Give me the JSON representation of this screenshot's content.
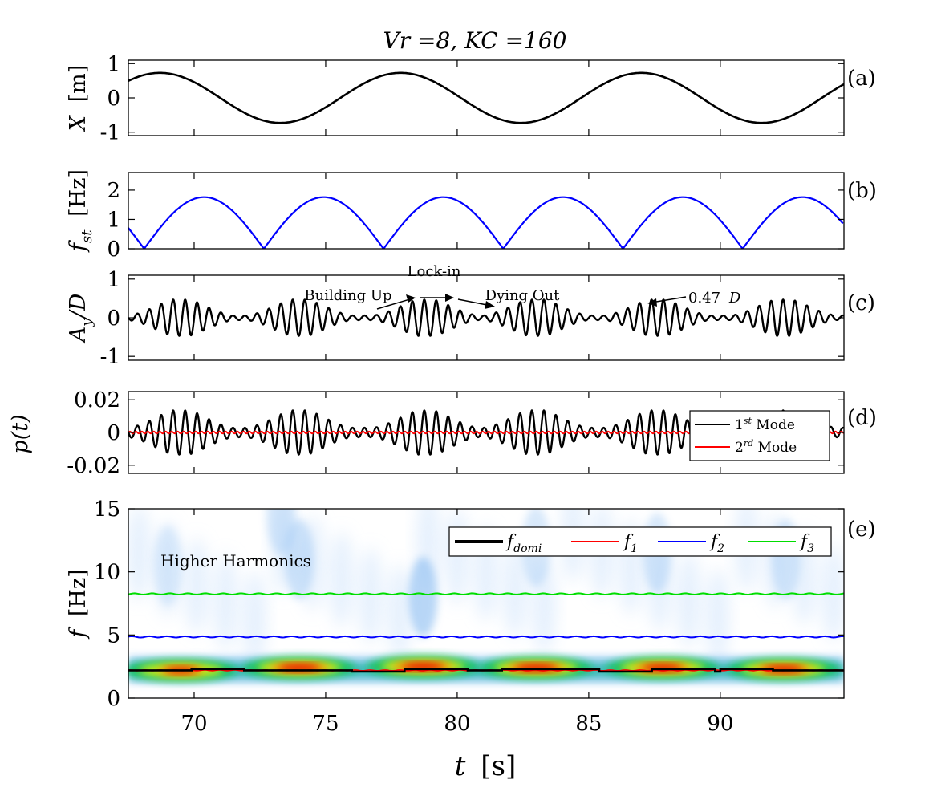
{
  "figure": {
    "title": "Vr =8,  KC =160",
    "x_ticks": [
      70,
      75,
      80,
      85,
      90
    ],
    "x_label_main": "t",
    "x_label_unit": "[s]"
  },
  "chart_data": [
    {
      "id": "a",
      "type": "line",
      "panel_label": "(a)",
      "ylabel_main": "X",
      "ylabel_unit": "[m]",
      "xlim": [
        67.5,
        94.7
      ],
      "ylim": [
        -1.1,
        1.1
      ],
      "y_ticks": [
        -1,
        0,
        1
      ],
      "series": [
        {
          "color": "#000000",
          "function": "sine",
          "amplitude": 0.73,
          "frequency_hz": 0.1093,
          "peak_times": [
            68.7,
            77.85,
            87.0
          ],
          "trough_times": [
            73.25,
            82.4,
            91.55
          ]
        }
      ]
    },
    {
      "id": "b",
      "type": "line",
      "panel_label": "(b)",
      "ylabel_main": "f",
      "ylabel_sub": "st",
      "ylabel_unit": "[Hz]",
      "xlim": [
        67.5,
        94.7
      ],
      "ylim": [
        0,
        2.6
      ],
      "y_ticks": [
        0,
        1,
        2
      ],
      "series": [
        {
          "color": "#0000ff",
          "function": "abs_sine",
          "amplitude": 1.76,
          "zero_times": [
            68.1,
            72.65,
            77.2,
            81.75,
            86.3,
            90.85
          ],
          "peak_times": [
            70.4,
            74.95,
            79.5,
            84.05,
            88.6,
            93.15
          ]
        }
      ]
    },
    {
      "id": "c",
      "type": "line",
      "panel_label": "(c)",
      "ylabel_main": "A",
      "ylabel_sub": "y",
      "ylabel_unit": "/D",
      "xlim": [
        67.5,
        94.7
      ],
      "ylim": [
        -1.1,
        1.1
      ],
      "y_ticks": [
        -1,
        0,
        1
      ],
      "annotations": {
        "lock_in": "Lock-in",
        "building_up": "Building Up",
        "dying_out": "Dying Out",
        "amplitude_label": "0.47",
        "amplitude_unit": "D"
      },
      "series": [
        {
          "color": "#000000",
          "signal": "modulated_oscillation",
          "carrier_frequency_hz": 2.2,
          "max_amplitude": 0.47,
          "envelope_peak_times": [
            69.5,
            74.0,
            78.8,
            83.0,
            87.6,
            92.4
          ]
        }
      ]
    },
    {
      "id": "d",
      "type": "line",
      "panel_label": "(d)",
      "ylabel_main": "p(t)",
      "xlim": [
        67.5,
        94.7
      ],
      "ylim": [
        -0.025,
        0.025
      ],
      "y_ticks": [
        -0.02,
        0,
        0.02
      ],
      "y_tick_labels": [
        "-0.02",
        "0",
        "0.02"
      ],
      "legend": {
        "placement": "right",
        "entries": [
          {
            "base": "1",
            "sup": "st",
            "text": " Mode",
            "color": "#000000"
          },
          {
            "base": "2",
            "sup": "rd",
            "text": " Mode",
            "color": "#ff0000"
          }
        ]
      },
      "series": [
        {
          "name": "1st Mode",
          "color": "#000000",
          "carrier_frequency_hz": 2.2,
          "max_amplitude": 0.0135
        },
        {
          "name": "2rd Mode",
          "color": "#ff0000",
          "carrier_frequency_hz": 2.2,
          "max_amplitude": 0.0006
        }
      ]
    },
    {
      "id": "e",
      "type": "heatmap",
      "panel_label": "(e)",
      "ylabel_main": "f",
      "ylabel_unit": "[Hz]",
      "xlim": [
        67.5,
        94.7
      ],
      "ylim": [
        0,
        15
      ],
      "y_ticks": [
        0,
        5,
        10,
        15
      ],
      "annotation": "Higher Harmonics",
      "legend": {
        "placement": "top-right",
        "entries": [
          {
            "base": "f",
            "sub": "domi",
            "color": "#000000"
          },
          {
            "base": "f",
            "sub": "1",
            "color": "#ff0000"
          },
          {
            "base": "f",
            "sub": "2",
            "color": "#0000ff"
          },
          {
            "base": "f",
            "sub": "3",
            "color": "#00dd00"
          }
        ]
      },
      "series": [
        {
          "name": "f_domi",
          "color": "#000000",
          "type": "step",
          "steps": [
            [
              67.5,
              2.2
            ],
            [
              69.9,
              2.3
            ],
            [
              71.9,
              2.2
            ],
            [
              74.1,
              2.2
            ],
            [
              76.0,
              2.1
            ],
            [
              78.0,
              2.3
            ],
            [
              80.4,
              2.2
            ],
            [
              81.7,
              2.3
            ],
            [
              85.4,
              2.1
            ],
            [
              87.4,
              2.3
            ],
            [
              89.8,
              2.1
            ],
            [
              90.0,
              2.3
            ],
            [
              92.0,
              2.2
            ],
            [
              94.7,
              2.2
            ]
          ]
        },
        {
          "name": "f1",
          "color": "#ff0000",
          "constant_hz": 2.2
        },
        {
          "name": "f2",
          "color": "#0000ff",
          "constant_hz": 4.85
        },
        {
          "name": "f3",
          "color": "#00dd00",
          "constant_hz": 8.25
        }
      ],
      "energy_blobs": [
        {
          "t": 69.5,
          "f": 2.2,
          "level": 0.75
        },
        {
          "t": 74.0,
          "f": 2.4,
          "level": 1.0
        },
        {
          "t": 78.7,
          "f": 2.5,
          "level": 1.0
        },
        {
          "t": 83.0,
          "f": 2.4,
          "level": 1.0
        },
        {
          "t": 87.8,
          "f": 2.4,
          "level": 0.95
        },
        {
          "t": 92.4,
          "f": 2.3,
          "level": 0.95
        }
      ],
      "harmonic_blobs": [
        {
          "t": 78.7,
          "f": 8.0,
          "level": 0.55
        },
        {
          "t": 74.0,
          "f": 11.0,
          "level": 0.35
        },
        {
          "t": 73.3,
          "f": 14.5,
          "level": 0.3
        },
        {
          "t": 83.0,
          "f": 12.0,
          "level": 0.3
        },
        {
          "t": 87.6,
          "f": 11.5,
          "level": 0.3
        },
        {
          "t": 92.5,
          "f": 11.0,
          "level": 0.3
        },
        {
          "t": 69.0,
          "f": 10.5,
          "level": 0.2
        }
      ]
    }
  ]
}
